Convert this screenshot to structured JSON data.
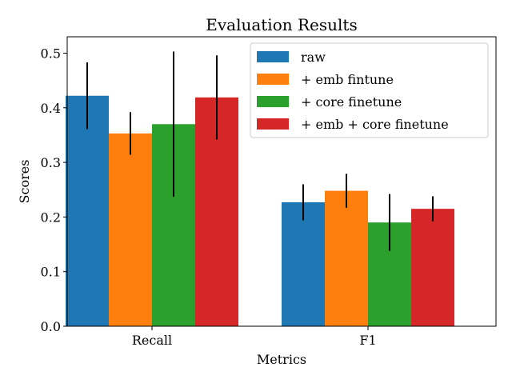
{
  "chart_data": {
    "type": "bar",
    "title": "Evaluation Results",
    "xlabel": "Metrics",
    "ylabel": "Scores",
    "categories": [
      "Recall",
      "F1"
    ],
    "ylim": [
      0,
      0.53
    ],
    "yticks": [
      0.0,
      0.1,
      0.2,
      0.3,
      0.4,
      0.5
    ],
    "ytick_labels": [
      "0.0",
      "0.1",
      "0.2",
      "0.3",
      "0.4",
      "0.5"
    ],
    "grid": false,
    "legend_position": "top-right",
    "series": [
      {
        "name": "raw",
        "color": "#1f77b4",
        "values": [
          0.422,
          0.227
        ],
        "errors": [
          0.061,
          0.033
        ]
      },
      {
        "name": "+ emb fintune",
        "color": "#ff7f0e",
        "values": [
          0.353,
          0.248
        ],
        "errors": [
          0.039,
          0.031
        ]
      },
      {
        "name": "+ core finetune",
        "color": "#2ca02c",
        "values": [
          0.37,
          0.19
        ],
        "errors": [
          0.133,
          0.052
        ]
      },
      {
        "name": "+ emb + core finetune",
        "color": "#d62728",
        "values": [
          0.419,
          0.215
        ],
        "errors": [
          0.077,
          0.023
        ]
      }
    ]
  }
}
